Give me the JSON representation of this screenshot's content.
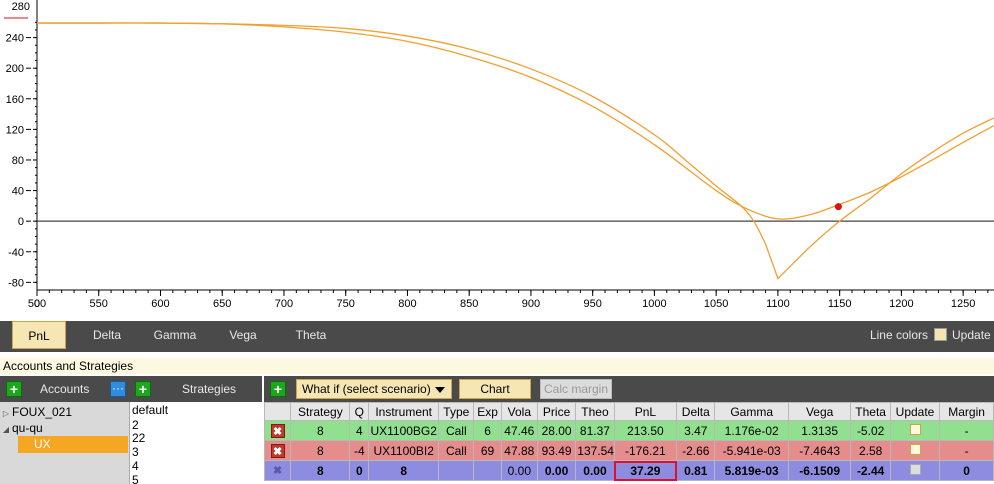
{
  "chart_data": {
    "type": "line",
    "xlabel": "",
    "ylabel": "",
    "xlim": [
      500,
      1275
    ],
    "ylim": [
      -90,
      280
    ],
    "x_ticks": [
      500,
      550,
      600,
      650,
      700,
      750,
      800,
      850,
      900,
      950,
      1000,
      1050,
      1100,
      1150,
      1200,
      1250
    ],
    "y_ticks": [
      -80,
      -40,
      0,
      40,
      80,
      120,
      160,
      200,
      240
    ],
    "y_tick_labels": [
      "-80",
      "-40",
      "0",
      "40",
      "80",
      "120",
      "160",
      "200",
      "240"
    ],
    "top_cut_label": "280",
    "zero_line": 0,
    "series": [
      {
        "color": "#f0a030",
        "x": [
          500,
          550,
          600,
          650,
          700,
          750,
          800,
          850,
          900,
          950,
          1000,
          1025,
          1050,
          1075,
          1090,
          1100,
          1125,
          1150,
          1175,
          1200,
          1225,
          1250,
          1275
        ],
        "y": [
          259,
          259,
          259,
          258,
          256,
          252,
          242,
          225,
          199,
          163,
          113,
          80,
          46,
          12,
          -30,
          -75,
          -35,
          0,
          30,
          62,
          90,
          115,
          135
        ]
      },
      {
        "color": "#f0a030",
        "x": [
          500,
          550,
          600,
          650,
          700,
          750,
          800,
          850,
          900,
          950,
          1000,
          1050,
          1075,
          1100,
          1125,
          1150,
          1175,
          1200,
          1225,
          1250,
          1275
        ],
        "y": [
          259,
          259,
          259,
          258,
          254,
          247,
          235,
          215,
          188,
          150,
          100,
          40,
          16,
          3,
          8,
          22,
          38,
          58,
          80,
          103,
          125
        ]
      }
    ],
    "marker": {
      "x": 1149,
      "y": 19,
      "color": "#e01010"
    }
  },
  "tabs": {
    "items": [
      "PnL",
      "Delta",
      "Gamma",
      "Vega",
      "Theta"
    ],
    "active": "PnL"
  },
  "chart_options": {
    "line_colors_label": "Line colors",
    "update_label": "Update"
  },
  "panel": {
    "title": "Accounts and Strategies"
  },
  "left_toolbar": {
    "accounts_label": "Accounts",
    "strategies_label": "Strategies",
    "plus": "+",
    "dots": "···"
  },
  "accounts": {
    "items": [
      {
        "label": "FOUX_021",
        "expanded": false
      },
      {
        "label": "qu-qu",
        "expanded": true
      }
    ],
    "selected_child": "UX"
  },
  "strategies": {
    "items": [
      "default",
      "2",
      "22",
      "3",
      "4",
      "5"
    ]
  },
  "right_toolbar": {
    "plus": "+",
    "scenario": "What if  (select scenario)",
    "chart": "Chart",
    "calc_margin": "Calc margin"
  },
  "grid": {
    "columns": [
      "",
      "Strategy",
      "Q",
      "Instrument",
      "Type",
      "Exp",
      "Vola",
      "Price",
      "Theo",
      "PnL",
      "Delta",
      "Gamma",
      "Vega",
      "Theta",
      "Update",
      "Margin"
    ],
    "rows": [
      {
        "style": "green",
        "cells": [
          "8",
          "4",
          "UX1100BG2",
          "Call",
          "6",
          "47.46",
          "28.00",
          "81.37",
          "213.50",
          "3.47",
          "1.176e-02",
          "1.3135",
          "-5.02",
          "",
          "-"
        ]
      },
      {
        "style": "red",
        "cells": [
          "8",
          "-4",
          "UX1100BI2",
          "Call",
          "69",
          "47.88",
          "93.49",
          "137.54",
          "-176.21",
          "-2.66",
          "-5.941e-03",
          "-7.4643",
          "2.58",
          "",
          "-"
        ]
      },
      {
        "style": "total",
        "cells": [
          "8",
          "0",
          "8",
          "",
          "",
          "0.00",
          "0.00",
          "0.00",
          "37.29",
          "0.81",
          "5.819e-03",
          "-6.1509",
          "-2.44",
          "",
          "0"
        ]
      }
    ],
    "delete_glyph": "✖"
  }
}
